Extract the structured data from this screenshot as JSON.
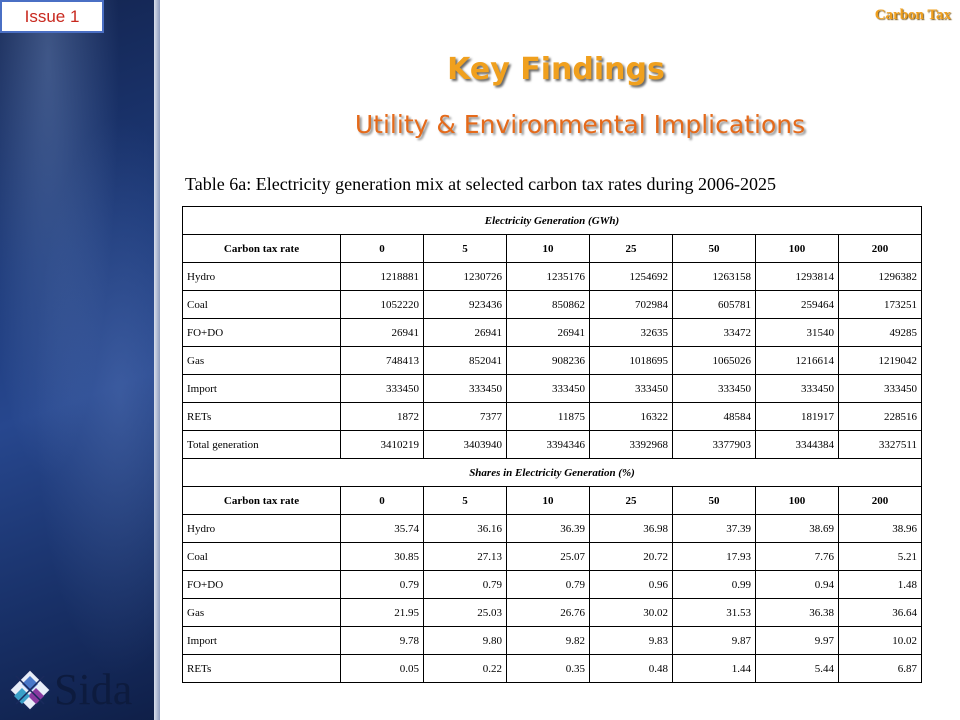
{
  "header": {
    "issue_label": "Issue 1",
    "top_label": "Carbon Tax",
    "title": "Key Findings",
    "subtitle": "Utility & Environmental Implications"
  },
  "caption": "Table 6a: Electricity generation mix at selected carbon tax rates during 2006-2025",
  "logo": {
    "text": "Sida"
  },
  "table": {
    "section1": {
      "title": "Electricity Generation (GWh)",
      "header_label": "Carbon tax rate",
      "rates": [
        "0",
        "5",
        "10",
        "25",
        "50",
        "100",
        "200"
      ],
      "rows": [
        {
          "label": "Hydro",
          "values": [
            "1218881",
            "1230726",
            "1235176",
            "1254692",
            "1263158",
            "1293814",
            "1296382"
          ]
        },
        {
          "label": "Coal",
          "values": [
            "1052220",
            "923436",
            "850862",
            "702984",
            "605781",
            "259464",
            "173251"
          ]
        },
        {
          "label": "FO+DO",
          "values": [
            "26941",
            "26941",
            "26941",
            "32635",
            "33472",
            "31540",
            "49285"
          ]
        },
        {
          "label": "Gas",
          "values": [
            "748413",
            "852041",
            "908236",
            "1018695",
            "1065026",
            "1216614",
            "1219042"
          ]
        },
        {
          "label": "Import",
          "values": [
            "333450",
            "333450",
            "333450",
            "333450",
            "333450",
            "333450",
            "333450"
          ]
        },
        {
          "label": "RETs",
          "values": [
            "1872",
            "7377",
            "11875",
            "16322",
            "48584",
            "181917",
            "228516"
          ]
        },
        {
          "label": "Total generation",
          "values": [
            "3410219",
            "3403940",
            "3394346",
            "3392968",
            "3377903",
            "3344384",
            "3327511"
          ]
        }
      ]
    },
    "section2": {
      "title": "Shares in Electricity Generation (%)",
      "header_label": "Carbon tax rate",
      "rates": [
        "0",
        "5",
        "10",
        "25",
        "50",
        "100",
        "200"
      ],
      "rows": [
        {
          "label": "Hydro",
          "values": [
            "35.74",
            "36.16",
            "36.39",
            "36.98",
            "37.39",
            "38.69",
            "38.96"
          ]
        },
        {
          "label": "Coal",
          "values": [
            "30.85",
            "27.13",
            "25.07",
            "20.72",
            "17.93",
            "7.76",
            "5.21"
          ]
        },
        {
          "label": "FO+DO",
          "values": [
            "0.79",
            "0.79",
            "0.79",
            "0.96",
            "0.99",
            "0.94",
            "1.48"
          ]
        },
        {
          "label": "Gas",
          "values": [
            "21.95",
            "25.03",
            "26.76",
            "30.02",
            "31.53",
            "36.38",
            "36.64"
          ]
        },
        {
          "label": "Import",
          "values": [
            "9.78",
            "9.80",
            "9.82",
            "9.83",
            "9.87",
            "9.97",
            "10.02"
          ]
        },
        {
          "label": "RETs",
          "values": [
            "0.05",
            "0.22",
            "0.35",
            "0.48",
            "1.44",
            "5.44",
            "6.87"
          ]
        }
      ]
    }
  }
}
